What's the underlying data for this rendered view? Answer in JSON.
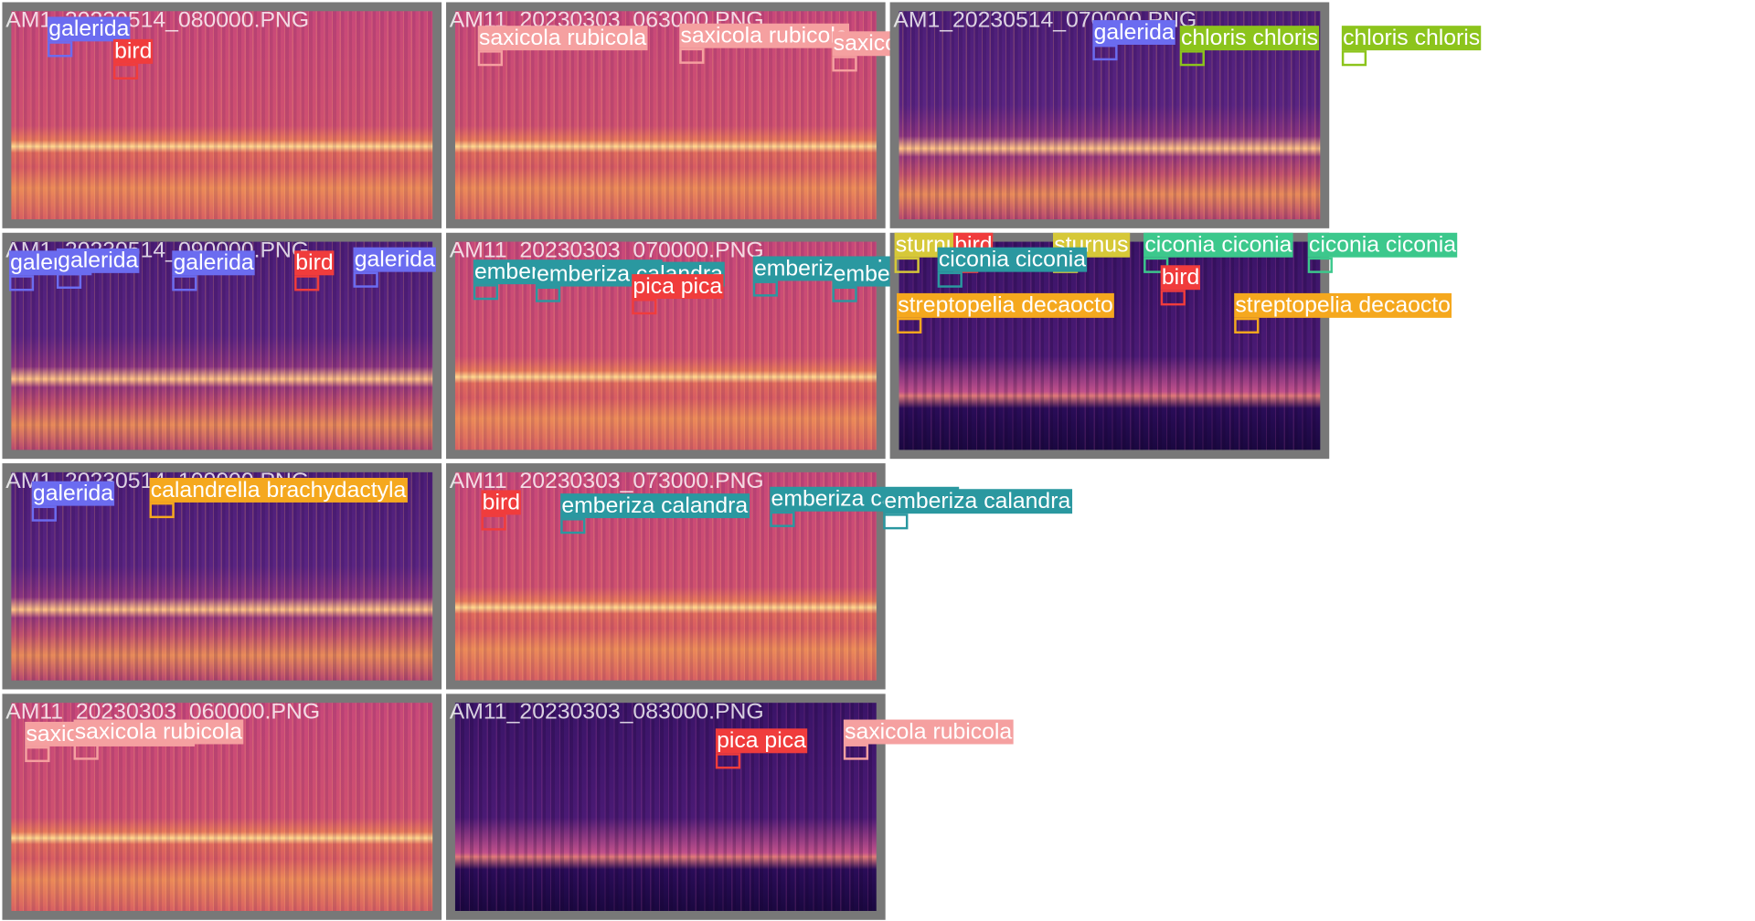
{
  "tiles": [
    {
      "title": "AM1_20230514_080000.PNG",
      "labels": [
        {
          "text": "galerida",
          "color": "#6b6cf0"
        },
        {
          "text": "bird",
          "color": "#f03c3c"
        }
      ]
    },
    {
      "title": "AM11_20230303_063000.PNG",
      "labels": [
        {
          "text": "saxicola rubicola",
          "color": "#f5a0a0"
        },
        {
          "text": "saxicola rubicola",
          "color": "#f5a0a0"
        },
        {
          "text": "saxicola rubicola",
          "color": "#f5a0a0"
        }
      ]
    },
    {
      "title": "AM1_20230514_070000.PNG",
      "labels": [
        {
          "text": "galerida",
          "color": "#6b6cf0"
        },
        {
          "text": "chloris chloris",
          "color": "#8cc41c"
        },
        {
          "text": "chloris chloris",
          "color": "#8cc41c"
        }
      ]
    },
    {
      "title": "AM1_20230514_090000.PNG",
      "labels": [
        {
          "text": "galerida",
          "color": "#6b6cf0"
        },
        {
          "text": "galerida",
          "color": "#6b6cf0"
        },
        {
          "text": "galerida",
          "color": "#6b6cf0"
        },
        {
          "text": "bird",
          "color": "#f03c3c"
        },
        {
          "text": "galerida",
          "color": "#6b6cf0"
        }
      ]
    },
    {
      "title": "AM11_20230303_070000.PNG",
      "labels": [
        {
          "text": "emberiza calandra",
          "color": "#2a98a0"
        },
        {
          "text": "emberiza calandra",
          "color": "#2a98a0"
        },
        {
          "text": "pica pica",
          "color": "#f03c3c"
        },
        {
          "text": "emberiza calandra",
          "color": "#2a98a0"
        },
        {
          "text": "emberiza calandra",
          "color": "#2a98a0"
        }
      ]
    },
    {
      "labels": [
        {
          "text": "sturnus",
          "color": "#d6c838"
        },
        {
          "text": "bird",
          "color": "#f03c3c"
        },
        {
          "text": "sturnus",
          "color": "#d6c838"
        },
        {
          "text": "ciconia ciconia",
          "color": "#3cc88c"
        },
        {
          "text": "ciconia ciconia",
          "color": "#3cc88c"
        },
        {
          "text": "ciconia ciconia",
          "color": "#2a98a0"
        },
        {
          "text": "streptopelia decaocto",
          "color": "#f5a81e"
        },
        {
          "text": "streptopelia decaocto",
          "color": "#f5a81e"
        },
        {
          "text": "bird",
          "color": "#f03c3c"
        }
      ]
    },
    {
      "title": "AM1_20230514_100000.PNG",
      "labels": [
        {
          "text": "galerida",
          "color": "#6b6cf0"
        },
        {
          "text": "calandrella brachydactyla",
          "color": "#f5a81e"
        }
      ]
    },
    {
      "title": "AM11_20230303_073000.PNG",
      "labels": [
        {
          "text": "bird",
          "color": "#f03c3c"
        },
        {
          "text": "emberiza calandra",
          "color": "#2a98a0"
        },
        {
          "text": "emberiza calandra",
          "color": "#2a98a0"
        },
        {
          "text": "emberiza calandra",
          "color": "#2a98a0"
        }
      ]
    },
    {
      "title": "AM11_20230303_060000.PNG",
      "labels": [
        {
          "text": "saxicola rubicola",
          "color": "#f5a0a0"
        },
        {
          "text": "saxicola rubicola",
          "color": "#f5a0a0"
        }
      ]
    },
    {
      "title": "AM11_20230303_083000.PNG",
      "labels": [
        {
          "text": "pica pica",
          "color": "#f03c3c"
        },
        {
          "text": "saxicola rubicola",
          "color": "#f5a0a0"
        }
      ]
    }
  ]
}
